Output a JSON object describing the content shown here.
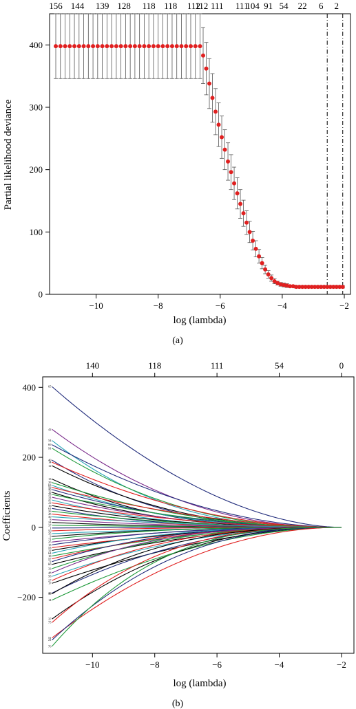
{
  "figure": {
    "panels": [
      {
        "caption": "(a)"
      },
      {
        "caption": "(b)"
      }
    ]
  },
  "chart_data": [
    {
      "type": "scatter",
      "subtype": "cv-deviance-with-error-bars",
      "xlabel": "log (lambda)",
      "ylabel": "Partial likelihood deviance",
      "xlim": [
        -11.5,
        -1.8
      ],
      "ylim": [
        0,
        450
      ],
      "xticks": [
        -10,
        -8,
        -6,
        -4,
        -2
      ],
      "yticks": [
        0,
        100,
        200,
        300,
        400
      ],
      "top_axis_labels": [
        "156",
        "144",
        "139",
        "128",
        "118",
        "118",
        "112",
        "112",
        "111",
        "111",
        "104",
        "91",
        "54",
        "22",
        "6",
        "2"
      ],
      "top_axis_x": [
        -11.3,
        -10.6,
        -9.8,
        -9.1,
        -8.3,
        -7.6,
        -6.85,
        -6.6,
        -6.1,
        -5.3,
        -4.95,
        -4.45,
        -3.95,
        -3.35,
        -2.75,
        -2.25
      ],
      "reference_lines_x": [
        -2.55,
        -2.05
      ],
      "point_color": "#e02020",
      "errorbar_color": "#555555",
      "grid": false,
      "x": [
        -11.3,
        -11.15,
        -11.0,
        -10.85,
        -10.7,
        -10.55,
        -10.4,
        -10.25,
        -10.1,
        -9.95,
        -9.8,
        -9.65,
        -9.5,
        -9.35,
        -9.2,
        -9.05,
        -8.9,
        -8.75,
        -8.6,
        -8.45,
        -8.3,
        -8.15,
        -8.0,
        -7.85,
        -7.7,
        -7.55,
        -7.4,
        -7.25,
        -7.1,
        -6.95,
        -6.8,
        -6.65,
        -6.55,
        -6.45,
        -6.35,
        -6.25,
        -6.15,
        -6.05,
        -5.95,
        -5.85,
        -5.75,
        -5.65,
        -5.55,
        -5.45,
        -5.35,
        -5.25,
        -5.15,
        -5.05,
        -4.95,
        -4.85,
        -4.75,
        -4.65,
        -4.55,
        -4.45,
        -4.35,
        -4.25,
        -4.15,
        -4.05,
        -3.95,
        -3.85,
        -3.75,
        -3.65,
        -3.55,
        -3.45,
        -3.35,
        -3.25,
        -3.15,
        -3.05,
        -2.95,
        -2.85,
        -2.75,
        -2.65,
        -2.55,
        -2.45,
        -2.35,
        -2.25,
        -2.15,
        -2.05
      ],
      "y": [
        398,
        398,
        398,
        398,
        398,
        398,
        398,
        398,
        398,
        398,
        398,
        398,
        398,
        398,
        398,
        398,
        398,
        398,
        398,
        398,
        398,
        398,
        398,
        398,
        398,
        398,
        398,
        398,
        398,
        398,
        398,
        398,
        383,
        362,
        338,
        315,
        293,
        272,
        252,
        232,
        213,
        196,
        178,
        162,
        145,
        130,
        115,
        100,
        86,
        73,
        61,
        50,
        40,
        32,
        26,
        21,
        18,
        16,
        15,
        14,
        13,
        13,
        12,
        12,
        12,
        12,
        12,
        12,
        12,
        12,
        12,
        12,
        12,
        12,
        12,
        12,
        12,
        12
      ],
      "y_lower": [
        346,
        346,
        346,
        346,
        346,
        346,
        346,
        346,
        346,
        346,
        346,
        346,
        346,
        346,
        346,
        346,
        346,
        346,
        346,
        346,
        346,
        346,
        346,
        346,
        346,
        346,
        346,
        346,
        346,
        346,
        346,
        346,
        338,
        320,
        298,
        276,
        256,
        237,
        218,
        200,
        183,
        168,
        152,
        137,
        122,
        109,
        96,
        83,
        71,
        60,
        50,
        41,
        33,
        26,
        21,
        17,
        15,
        13,
        12,
        11,
        11,
        11,
        10,
        10,
        10,
        10,
        10,
        10,
        10,
        10,
        10,
        10,
        10,
        10,
        10,
        10,
        10,
        10
      ],
      "y_upper": [
        450,
        450,
        450,
        450,
        450,
        450,
        450,
        450,
        450,
        450,
        450,
        450,
        450,
        450,
        450,
        450,
        450,
        450,
        450,
        450,
        450,
        450,
        450,
        450,
        450,
        450,
        450,
        450,
        450,
        450,
        450,
        450,
        428,
        404,
        378,
        354,
        330,
        307,
        286,
        264,
        243,
        224,
        204,
        187,
        168,
        151,
        134,
        117,
        101,
        86,
        72,
        59,
        47,
        38,
        31,
        25,
        21,
        19,
        18,
        17,
        15,
        15,
        14,
        14,
        14,
        14,
        14,
        14,
        14,
        14,
        14,
        14,
        14,
        14,
        14,
        14,
        14,
        14
      ]
    },
    {
      "type": "line",
      "subtype": "coefficient-paths",
      "xlabel": "log (lambda)",
      "ylabel": "Coefficients",
      "xlim": [
        -11.6,
        -1.6
      ],
      "ylim": [
        -360,
        430
      ],
      "xticks": [
        -10,
        -8,
        -6,
        -4,
        -2
      ],
      "yticks": [
        -200,
        0,
        200,
        400
      ],
      "top_axis_labels": [
        "140",
        "118",
        "111",
        "54",
        "0"
      ],
      "top_axis_x": [
        -10.0,
        -8.0,
        -6.0,
        -4.0,
        -2.0
      ],
      "x_start": -11.3,
      "x_end": -2.0,
      "grid": false,
      "series": [
        {
          "label": "65",
          "start": 402,
          "color": "#1f2a7a"
        },
        {
          "label": "42",
          "start": 280,
          "color": "#7a2a8a"
        },
        {
          "label": "54",
          "start": 248,
          "color": "#2aa6b8"
        },
        {
          "label": "69",
          "start": 236,
          "color": "#1f2a7a"
        },
        {
          "label": "91",
          "start": 226,
          "color": "#1f9a3a"
        },
        {
          "label": "40",
          "start": 192,
          "color": "#1f2a7a"
        },
        {
          "label": "14",
          "start": 186,
          "color": "#e02020"
        },
        {
          "label": "12",
          "start": 176,
          "color": "#000000"
        },
        {
          "label": "13",
          "start": 138,
          "color": "#000000"
        },
        {
          "label": "29",
          "start": 128,
          "color": "#1f9a3a"
        },
        {
          "label": "63",
          "start": 120,
          "color": "#2aa6b8"
        },
        {
          "label": "58",
          "start": 114,
          "color": "#e02020"
        },
        {
          "label": "49",
          "start": 108,
          "color": "#1f2a7a"
        },
        {
          "label": "19",
          "start": 100,
          "color": "#000000"
        },
        {
          "label": "33",
          "start": 94,
          "color": "#1f9a3a"
        },
        {
          "label": "31",
          "start": 86,
          "color": "#7a2a8a"
        },
        {
          "label": "47",
          "start": 78,
          "color": "#2aa6b8"
        },
        {
          "label": "22",
          "start": 70,
          "color": "#e02020"
        },
        {
          "label": "16",
          "start": 62,
          "color": "#000000"
        },
        {
          "label": "61",
          "start": 54,
          "color": "#1f2a7a"
        },
        {
          "label": "26",
          "start": 46,
          "color": "#1f9a3a"
        },
        {
          "label": "45",
          "start": 38,
          "color": "#e02020"
        },
        {
          "label": "30",
          "start": 30,
          "color": "#2aa6b8"
        },
        {
          "label": "8",
          "start": 22,
          "color": "#7a2a8a"
        },
        {
          "label": "24",
          "start": 14,
          "color": "#000000"
        },
        {
          "label": "37",
          "start": 6,
          "color": "#1f9a3a"
        },
        {
          "label": "1",
          "start": -2,
          "color": "#1f2a7a"
        },
        {
          "label": "50",
          "start": -10,
          "color": "#e02020"
        },
        {
          "label": "35",
          "start": -18,
          "color": "#2aa6b8"
        },
        {
          "label": "9",
          "start": -26,
          "color": "#000000"
        },
        {
          "label": "71",
          "start": -34,
          "color": "#1f9a3a"
        },
        {
          "label": "25",
          "start": -42,
          "color": "#7a2a8a"
        },
        {
          "label": "15",
          "start": -50,
          "color": "#1f2a7a"
        },
        {
          "label": "53",
          "start": -58,
          "color": "#e02020"
        },
        {
          "label": "32",
          "start": -66,
          "color": "#000000"
        },
        {
          "label": "64",
          "start": -74,
          "color": "#2aa6b8"
        },
        {
          "label": "18",
          "start": -82,
          "color": "#1f9a3a"
        },
        {
          "label": "57",
          "start": -90,
          "color": "#e02020"
        },
        {
          "label": "72",
          "start": -98,
          "color": "#1f2a7a"
        },
        {
          "label": "60",
          "start": -106,
          "color": "#000000"
        },
        {
          "label": "33",
          "start": -118,
          "color": "#1f9a3a"
        },
        {
          "label": "48",
          "start": -130,
          "color": "#7a2a8a"
        },
        {
          "label": "58",
          "start": -140,
          "color": "#2aa6b8"
        },
        {
          "label": "27",
          "start": -152,
          "color": "#e02020"
        },
        {
          "label": "17",
          "start": -160,
          "color": "#000000"
        },
        {
          "label": "20",
          "start": -188,
          "color": "#1f2a7a"
        },
        {
          "label": "39",
          "start": -190,
          "color": "#000000"
        },
        {
          "label": "14",
          "start": -208,
          "color": "#1f9a3a"
        },
        {
          "label": "37",
          "start": -262,
          "color": "#000000"
        },
        {
          "label": "75",
          "start": -272,
          "color": "#e02020"
        },
        {
          "label": "51",
          "start": -316,
          "color": "#e02020"
        },
        {
          "label": "21",
          "start": -322,
          "color": "#1f2a7a"
        },
        {
          "label": "70",
          "start": -340,
          "color": "#1f9a3a"
        }
      ]
    }
  ]
}
